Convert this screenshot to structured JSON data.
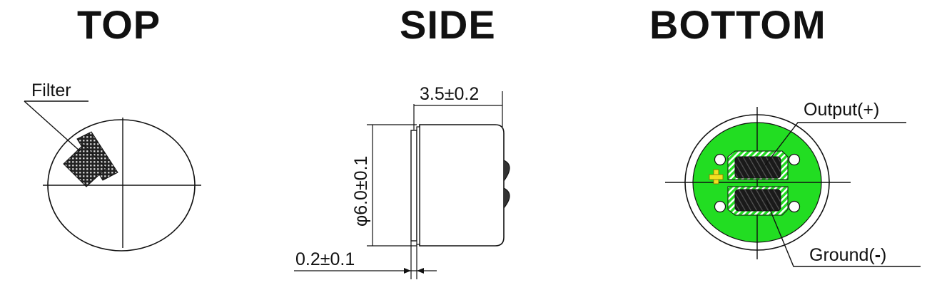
{
  "views": {
    "top": {
      "title": "TOP",
      "filter_label": "Filter"
    },
    "side": {
      "title": "SIDE",
      "dim_length": "3.5±0.2",
      "dim_diameter": "φ6.0±0.1",
      "dim_thickness": "0.2±0.1"
    },
    "bottom": {
      "title": "BOTTOM",
      "output_label": "Output(+)",
      "ground_label": "Ground(",
      "ground_minus": "-",
      "ground_close": ")",
      "plus_mark": "+"
    }
  },
  "colors": {
    "board_green": "#22dd22",
    "plus_yellow": "#f2e020",
    "line": "#111111"
  }
}
